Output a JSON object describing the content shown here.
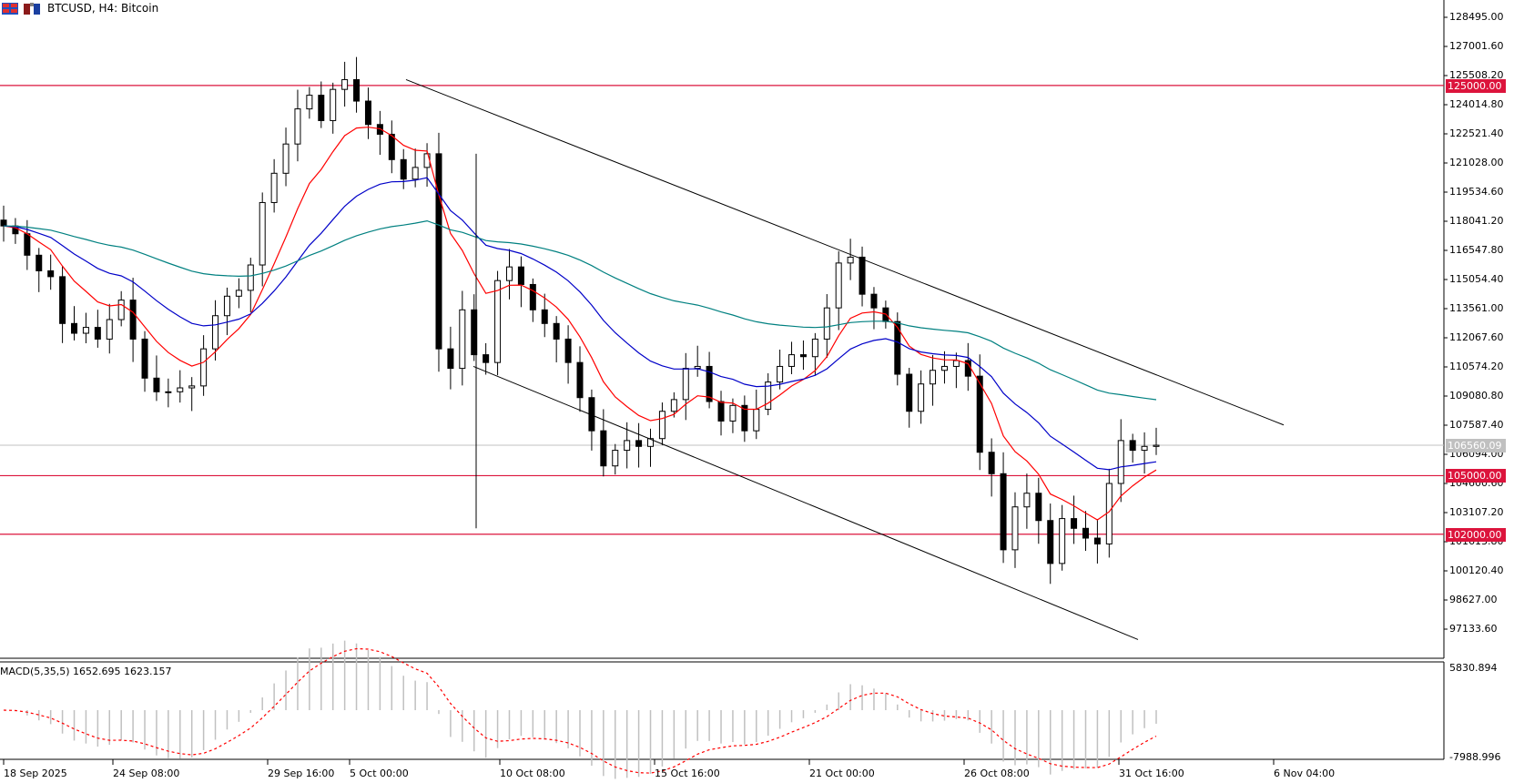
{
  "window": {
    "symbol": "BTCUSD",
    "timeframe": "H4",
    "description": "Bitcoin",
    "title": "BTCUSD, H4:  Bitcoin"
  },
  "price_axis": {
    "labels": [
      "128495.00",
      "127001.60",
      "125508.20",
      "124014.80",
      "122521.40",
      "121028.00",
      "119534.60",
      "118041.20",
      "116547.80",
      "115054.40",
      "113561.00",
      "112067.60",
      "110574.20",
      "109080.80",
      "107587.40",
      "106094.00",
      "104600.60",
      "103107.20",
      "101613.80",
      "100120.40",
      "98627.00",
      "97133.60"
    ],
    "max": 128495.0,
    "min": 97133.6
  },
  "horizontal_lines": [
    {
      "label": "125000.00",
      "value": 125000,
      "color": "#dc143c"
    },
    {
      "label": "105000.00",
      "value": 105000,
      "color": "#dc143c"
    },
    {
      "label": "102000.00",
      "value": 102000,
      "color": "#dc143c"
    }
  ],
  "bid_line": {
    "label": "106560.09",
    "value": 106560.09,
    "color": "#c0c0c0"
  },
  "macd": {
    "label": "MACD(5,35,5) 1652.695 1623.157",
    "axis_max": "5830.894",
    "axis_min": "-7988.996",
    "histogram_color": "#c0c0c0",
    "signal_color": "#ff0000"
  },
  "time_axis": {
    "labels": [
      "18 Sep 2025",
      "24 Sep 08:00",
      "29 Sep 16:00",
      "5 Oct 00:00",
      "10 Oct 08:00",
      "15 Oct 16:00",
      "21 Oct 00:00",
      "26 Oct 08:00",
      "31 Oct 16:00",
      "6 Nov 04:00"
    ]
  },
  "moving_averages": [
    {
      "name": "fast",
      "color": "#ff0000"
    },
    {
      "name": "medium",
      "color": "#0000c8"
    },
    {
      "name": "slow",
      "color": "#008080"
    }
  ],
  "chart_data": {
    "type": "candlestick",
    "title": "BTCUSD, H4: Bitcoin",
    "ylim": [
      97133.6,
      128495.0
    ],
    "annotations": [
      "Descending channel",
      "Support 105000",
      "Support 102000",
      "Resistance 125000"
    ],
    "approx_closes": [
      117800,
      117400,
      116300,
      115500,
      115200,
      112800,
      112300,
      112600,
      112000,
      113000,
      114000,
      112000,
      110000,
      109300,
      109300,
      109500,
      109600,
      111500,
      113200,
      114200,
      114500,
      115800,
      119000,
      120500,
      122000,
      123800,
      124500,
      123200,
      124800,
      125300,
      124200,
      123000,
      122500,
      121200,
      120200,
      120800,
      121500,
      111500,
      110500,
      113500,
      111200,
      110800,
      115000,
      115700,
      114800,
      113500,
      112800,
      112000,
      110800,
      109000,
      107300,
      105500,
      106300,
      106800,
      106500,
      106900,
      108300,
      108900,
      110500,
      110600,
      108800,
      107800,
      108600,
      107300,
      108400,
      109800,
      110600,
      111200,
      111100,
      112000,
      113600,
      115900,
      116200,
      114300,
      113600,
      112900,
      110200,
      108300,
      109700,
      110400,
      110600,
      110900,
      110100,
      106200,
      105100,
      101200,
      103400,
      104100,
      102700,
      100500,
      102800,
      102300,
      101800,
      101500,
      104600,
      106800,
      106300,
      106500,
      106560
    ]
  }
}
